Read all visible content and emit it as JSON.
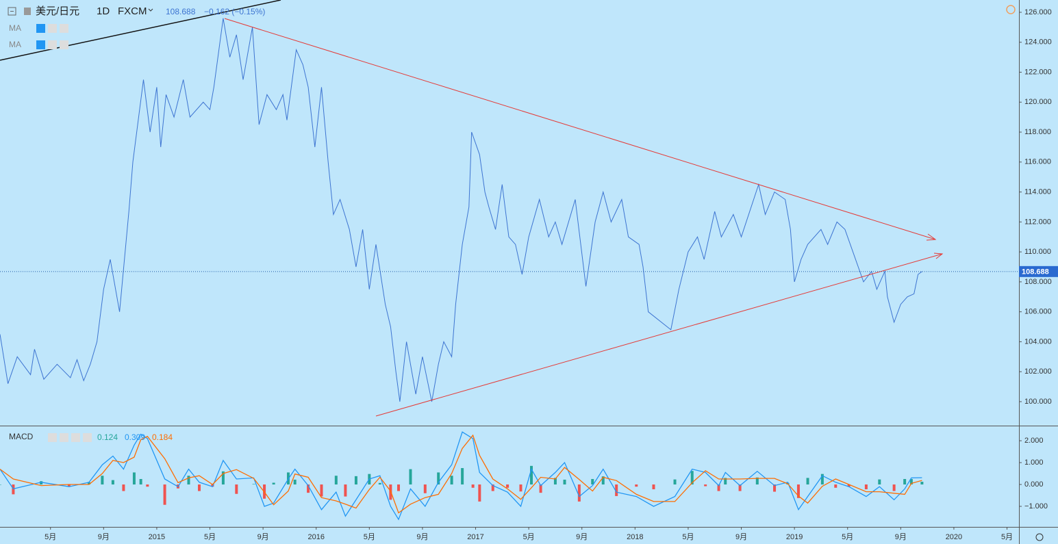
{
  "chart_data": [
    {
      "type": "line",
      "title": "美元/日元",
      "interval": "1D",
      "source": "FXCM",
      "change": "−0.162 (−0.15%)",
      "indicators": [
        "MA",
        "MA"
      ],
      "last_value": 108.688,
      "xlim": [
        0.2,
        76.9
      ],
      "ylim": [
        98.4,
        126.82
      ],
      "grid": false,
      "yticks": [
        {
          "value": 100,
          "label": "100.000"
        },
        {
          "value": 102,
          "label": "102.000"
        },
        {
          "value": 104,
          "label": "104.000"
        },
        {
          "value": 106,
          "label": "106.000"
        },
        {
          "value": 108,
          "label": "108.000"
        },
        {
          "value": 110,
          "label": "110.000"
        },
        {
          "value": 112,
          "label": "112.000"
        },
        {
          "value": 114,
          "label": "114.000"
        },
        {
          "value": 116,
          "label": "116.000"
        },
        {
          "value": 118,
          "label": "118.000"
        },
        {
          "value": 120,
          "label": "120.000"
        },
        {
          "value": 122,
          "label": "122.000"
        },
        {
          "value": 124,
          "label": "124.000"
        },
        {
          "value": 126,
          "label": "126.000"
        }
      ],
      "series": [
        {
          "name": "美元/日元",
          "color": "#3d74d1",
          "x": [
            0.2,
            0.8,
            1.5,
            2.5,
            2.8,
            3.5,
            4.5,
            5.5,
            6.0,
            6.5,
            7.0,
            7.5,
            8.0,
            8.5,
            9.2,
            9.9,
            10.2,
            11.0,
            11.5,
            12.0,
            12.3,
            12.7,
            13.3,
            14.0,
            14.5,
            15.5,
            16.0,
            16.3,
            17.0,
            17.5,
            18.0,
            18.5,
            19.2,
            19.7,
            20.3,
            21.0,
            21.5,
            21.8,
            22.5,
            23.0,
            23.4,
            23.9,
            24.4,
            24.9,
            25.3,
            25.8,
            26.5,
            27.0,
            27.5,
            28.0,
            28.5,
            29.2,
            29.6,
            30.0,
            30.3,
            30.8,
            31.5,
            32.0,
            32.7,
            33.2,
            33.6,
            34.2,
            34.5,
            35.0,
            35.5,
            35.7,
            36.3,
            36.7,
            37.0,
            37.5,
            38.0,
            38.5,
            39.0,
            39.5,
            40.0,
            40.8,
            41.5,
            42.0,
            42.5,
            43.5,
            44.3,
            45.0,
            45.6,
            46.2,
            47.0,
            47.5,
            48.3,
            48.6,
            49.0,
            50.7,
            51.3,
            52.0,
            52.7,
            53.2,
            54.0,
            54.5,
            55.4,
            56.0,
            57.3,
            57.8,
            58.5,
            59.3,
            59.7,
            60.0,
            60.5,
            61.0,
            62.0,
            62.5,
            63.2,
            63.8,
            64.6,
            65.2,
            65.8,
            66.2,
            66.8,
            67.0,
            67.5,
            68.0,
            68.5,
            69.0,
            69.3,
            69.6
          ],
          "values": [
            104.5,
            101.2,
            103,
            101.8,
            103.5,
            101.5,
            102.5,
            101.6,
            102.8,
            101.4,
            102.5,
            104,
            107.5,
            109.5,
            106,
            112.7,
            116,
            121.5,
            118,
            121,
            117,
            120.5,
            119,
            121.5,
            119,
            120,
            119.5,
            121,
            125.6,
            123,
            124.5,
            121.5,
            125,
            118.5,
            120.5,
            119.5,
            120.5,
            118.8,
            123.5,
            122.5,
            121,
            117,
            121,
            116,
            112.5,
            113.5,
            111.5,
            109,
            111.5,
            107.5,
            110.5,
            106.5,
            105,
            102,
            100,
            104,
            100.5,
            103,
            100,
            102.5,
            104,
            103,
            106.5,
            110.5,
            113,
            118,
            116.5,
            114,
            113,
            111.5,
            114.5,
            111,
            110.5,
            108.5,
            111,
            113.5,
            111,
            112,
            110.5,
            113.5,
            107.7,
            112,
            114,
            112,
            113.5,
            111,
            110.5,
            109,
            106,
            104.8,
            107.5,
            110,
            111,
            109.5,
            112.7,
            111,
            112.5,
            111,
            114.5,
            112.5,
            114,
            113.5,
            111.5,
            108,
            109.5,
            110.5,
            111.5,
            110.5,
            112,
            111.5,
            109.5,
            108,
            108.7,
            107.5,
            108.7,
            107,
            105.3,
            106.5,
            107,
            107.2,
            108.5,
            108.688
          ]
        }
      ]
    },
    {
      "type": "macd",
      "title": "MACD",
      "xlim": [
        0.2,
        76.9
      ],
      "ylim": [
        -1.94,
        2.66
      ],
      "grid": false,
      "xticks": [
        {
          "value": 4,
          "label": "5月"
        },
        {
          "value": 8,
          "label": "9月"
        },
        {
          "value": 12,
          "label": "2015"
        },
        {
          "value": 16,
          "label": "5月"
        },
        {
          "value": 20,
          "label": "9月"
        },
        {
          "value": 24,
          "label": "2016"
        },
        {
          "value": 28,
          "label": "5月"
        },
        {
          "value": 32,
          "label": "9月"
        },
        {
          "value": 36,
          "label": "2017"
        },
        {
          "value": 40,
          "label": "5月"
        },
        {
          "value": 44,
          "label": "9月"
        },
        {
          "value": 48,
          "label": "2018"
        },
        {
          "value": 52,
          "label": "5月"
        },
        {
          "value": 56,
          "label": "9月"
        },
        {
          "value": 60,
          "label": "2019"
        },
        {
          "value": 64,
          "label": "5月"
        },
        {
          "value": 68,
          "label": "9月"
        },
        {
          "value": 72,
          "label": "2020"
        },
        {
          "value": 76,
          "label": "5月"
        }
      ],
      "yticks": [
        {
          "value": -1,
          "label": "−1.000"
        },
        {
          "value": 0,
          "label": "0.000"
        },
        {
          "value": 1,
          "label": "1.000"
        },
        {
          "value": 2,
          "label": "2.000"
        }
      ],
      "x": [
        0.2,
        1.2,
        3.3,
        5.4,
        6.9,
        7.9,
        8.7,
        9.5,
        10.3,
        10.8,
        11.3,
        12.6,
        13.6,
        14.4,
        15.2,
        16.2,
        17.0,
        18.0,
        19.3,
        20.1,
        20.8,
        21.9,
        22.4,
        23.4,
        24.4,
        25.5,
        26.2,
        27.0,
        28.0,
        28.8,
        29.6,
        30.2,
        31.1,
        32.2,
        33.2,
        34.2,
        35.0,
        35.8,
        36.3,
        37.3,
        38.4,
        39.4,
        40.2,
        40.9,
        42.0,
        42.7,
        43.8,
        44.8,
        45.6,
        46.6,
        48.1,
        49.4,
        51.0,
        52.3,
        53.3,
        54.3,
        54.8,
        55.9,
        57.2,
        58.5,
        59.5,
        60.3,
        61.0,
        62.1,
        63.1,
        64.1,
        65.4,
        66.4,
        67.5,
        68.3,
        68.8,
        69.6
      ],
      "series": [
        {
          "name": "Histogram",
          "type": "bar",
          "color": "#26a69a",
          "negative_color": "#ef5350",
          "values": [
            0,
            -0.45,
            0.15,
            -0.1,
            0.1,
            0.4,
            0.2,
            -0.3,
            0.55,
            0.25,
            -0.1,
            -0.93,
            -0.18,
            0.4,
            -0.3,
            -0.1,
            0.6,
            -0.43,
            0.02,
            -0.65,
            0.08,
            0.55,
            0.22,
            -0.38,
            -0.55,
            0.4,
            -0.55,
            0.38,
            0.48,
            0.07,
            -0.7,
            -0.3,
            0.7,
            -0.4,
            0.55,
            0.4,
            0.75,
            -0.15,
            -0.78,
            -0.3,
            -0.15,
            -0.32,
            0.85,
            -0.38,
            0.3,
            0.22,
            -0.78,
            0.25,
            0.37,
            -0.53,
            -0.1,
            -0.22,
            0.23,
            0.62,
            -0.08,
            -0.3,
            0.3,
            -0.3,
            0.32,
            -0.33,
            0.07,
            -0.62,
            0.3,
            0.48,
            -0.15,
            -0.1,
            -0.22,
            0.23,
            -0.3,
            0.25,
            0.25,
            0.124
          ]
        },
        {
          "name": "MACD",
          "type": "line",
          "color": "#2196f3",
          "values": [
            0.7,
            -0.2,
            0.1,
            -0.1,
            0.1,
            0.9,
            1.3,
            0.7,
            1.8,
            2.3,
            2.1,
            0.25,
            -0.1,
            0.7,
            0.1,
            -0.1,
            1.1,
            0.25,
            0.3,
            -1.0,
            -0.85,
            0.25,
            0.7,
            -0.05,
            -1.15,
            -0.35,
            -1.45,
            -0.7,
            0.25,
            0.4,
            -1.0,
            -1.6,
            -0.2,
            -1.0,
            0.1,
            0.9,
            2.4,
            2.1,
            0.55,
            -0.05,
            -0.35,
            -1.0,
            0.7,
            -0.05,
            0.55,
            1.0,
            -0.55,
            -0.05,
            0.7,
            -0.35,
            -0.55,
            -1.0,
            -0.55,
            0.7,
            0.55,
            -0.05,
            0.55,
            -0.05,
            0.6,
            -0.05,
            0.1,
            -1.15,
            -0.55,
            0.4,
            0.1,
            -0.1,
            -0.55,
            -0.1,
            -0.7,
            -0.2,
            0.3,
            0.309
          ]
        },
        {
          "name": "Signal",
          "type": "line",
          "color": "#ff6d00",
          "values": [
            0.7,
            0.25,
            -0.05,
            0,
            0,
            0.5,
            1.1,
            1.0,
            1.25,
            2.05,
            2.2,
            1.18,
            0.08,
            0.3,
            0.4,
            0,
            0.5,
            0.68,
            0.28,
            -0.35,
            -0.93,
            -0.3,
            0.48,
            0.33,
            -0.6,
            -0.75,
            -0.9,
            -1.08,
            -0.23,
            0.33,
            -0.3,
            -1.3,
            -0.9,
            -0.6,
            -0.45,
            0.5,
            1.65,
            2.25,
            1.33,
            0.25,
            -0.2,
            -0.68,
            -0.15,
            0.33,
            0.25,
            0.78,
            0.23,
            -0.3,
            0.33,
            0.18,
            -0.45,
            -0.78,
            -0.78,
            0.08,
            0.63,
            0.25,
            0.25,
            0.25,
            0.28,
            0.28,
            0.03,
            -0.53,
            -0.85,
            -0.08,
            0.25,
            0,
            -0.33,
            -0.33,
            -0.4,
            -0.45,
            0.05,
            0.184
          ]
        }
      ]
    }
  ]
}
